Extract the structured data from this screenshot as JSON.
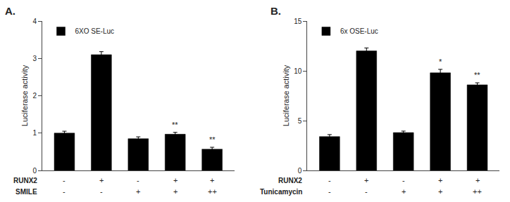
{
  "chart_data": [
    {
      "type": "bar",
      "title": "A.",
      "ylabel": "Luciferase activity",
      "categories": [
        [
          "-",
          "-"
        ],
        [
          "+",
          "-"
        ],
        [
          "-",
          "+"
        ],
        [
          "+",
          "+"
        ],
        [
          "+",
          "++"
        ]
      ],
      "row_labels": [
        "RUNX2",
        "SMILE"
      ],
      "series": [
        {
          "name": "6XO SE-Luc",
          "color": "#000000",
          "values": [
            1.0,
            3.1,
            0.85,
            0.97,
            0.57
          ],
          "errors": [
            0.05,
            0.08,
            0.05,
            0.05,
            0.05
          ]
        }
      ],
      "annotations": [
        null,
        null,
        null,
        "**",
        "**"
      ],
      "ylim": [
        0,
        4
      ],
      "yticks": [
        0,
        1,
        2,
        3,
        4
      ],
      "grid": false,
      "legend": "upper left"
    },
    {
      "type": "bar",
      "title": "B.",
      "ylabel": "Luciferase activity",
      "categories": [
        [
          "-",
          "-"
        ],
        [
          "+",
          "-"
        ],
        [
          "-",
          "+"
        ],
        [
          "+",
          "+"
        ],
        [
          "+",
          "++"
        ]
      ],
      "row_labels": [
        "RUNX2",
        "Tunicamycin"
      ],
      "series": [
        {
          "name": "6x OSE-Luc",
          "color": "#000000",
          "values": [
            3.4,
            12.0,
            3.8,
            9.8,
            8.6
          ],
          "errors": [
            0.2,
            0.3,
            0.15,
            0.35,
            0.2
          ]
        }
      ],
      "annotations": [
        null,
        null,
        null,
        "*",
        "**"
      ],
      "ylim": [
        0,
        15
      ],
      "yticks": [
        0,
        5,
        10,
        15
      ],
      "grid": false,
      "legend": "upper left"
    }
  ]
}
